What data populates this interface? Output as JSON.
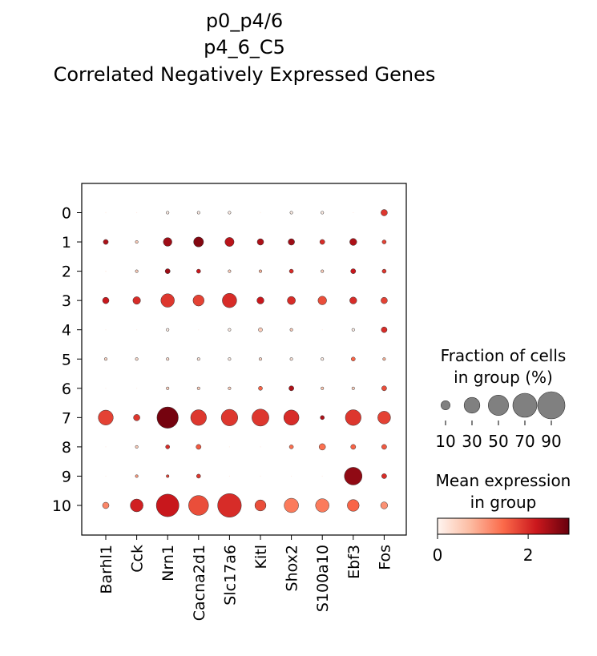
{
  "chart_data": {
    "type": "dotplot",
    "title_lines": [
      "p0_p4/6",
      "p4_6_C5",
      "Correlated Negatively Expressed Genes"
    ],
    "genes": [
      "Barhl1",
      "Cck",
      "Nrn1",
      "Cacna2d1",
      "Slc17a6",
      "Kitl",
      "Shox2",
      "S100a10",
      "Ebf3",
      "Fos"
    ],
    "groups": [
      "0",
      "1",
      "2",
      "3",
      "4",
      "5",
      "6",
      "7",
      "8",
      "9",
      "10"
    ],
    "fraction_pct": [
      [
        0,
        0,
        1,
        1,
        1,
        0,
        1,
        1,
        0,
        5
      ],
      [
        3,
        1,
        9,
        12,
        10,
        5,
        5,
        3,
        6,
        2
      ],
      [
        0,
        1,
        3,
        2,
        1,
        1,
        2,
        1,
        3,
        2
      ],
      [
        5,
        7,
        22,
        15,
        25,
        6,
        8,
        9,
        6,
        5
      ],
      [
        0,
        0,
        1,
        0,
        1,
        2,
        1,
        0,
        1,
        4
      ],
      [
        1,
        1,
        1,
        1,
        1,
        1,
        1,
        1,
        2,
        1
      ],
      [
        0,
        0,
        1,
        1,
        1,
        2,
        3,
        1,
        1,
        3
      ],
      [
        27,
        5,
        55,
        30,
        33,
        35,
        28,
        2,
        30,
        20
      ],
      [
        0,
        1,
        2,
        3,
        0,
        0,
        2,
        5,
        3,
        3
      ],
      [
        0,
        1,
        1,
        2,
        0,
        0,
        0,
        0,
        38,
        3
      ],
      [
        5,
        20,
        62,
        48,
        68,
        15,
        25,
        22,
        17,
        6
      ]
    ],
    "mean_expr": [
      [
        0.1,
        0.1,
        0.1,
        0.1,
        0.1,
        0.1,
        0.1,
        0.1,
        0.1,
        1.9
      ],
      [
        2.4,
        0.5,
        2.5,
        2.7,
        2.3,
        2.4,
        2.5,
        2.0,
        2.4,
        1.8
      ],
      [
        0.2,
        0.5,
        2.5,
        2.2,
        0.5,
        0.8,
        2.0,
        0.5,
        2.2,
        1.9
      ],
      [
        2.2,
        2.0,
        1.9,
        1.8,
        2.0,
        2.2,
        2.0,
        1.7,
        2.0,
        1.8
      ],
      [
        0.1,
        0.1,
        0.1,
        0.1,
        0.1,
        0.5,
        0.5,
        0.1,
        0.1,
        2.0
      ],
      [
        0.4,
        0.3,
        0.3,
        0.2,
        0.1,
        0.4,
        0.2,
        0.1,
        1.5,
        0.8
      ],
      [
        0.1,
        0.1,
        0.5,
        0.5,
        0.5,
        1.5,
        2.4,
        0.6,
        0.5,
        1.7
      ],
      [
        1.8,
        1.9,
        2.8,
        1.9,
        1.9,
        1.9,
        2.0,
        2.4,
        1.9,
        1.8
      ],
      [
        0.1,
        0.5,
        2.0,
        1.6,
        0.1,
        0.1,
        1.4,
        1.4,
        1.5,
        1.6
      ],
      [
        0.1,
        1.0,
        1.8,
        1.9,
        0.1,
        0.1,
        0.1,
        0.1,
        2.6,
        2.0
      ],
      [
        1.2,
        2.1,
        2.2,
        1.7,
        2.0,
        1.7,
        1.3,
        1.3,
        1.5,
        1.1
      ]
    ],
    "size_legend": {
      "title_lines": [
        "Fraction of cells",
        "in group (%)"
      ],
      "values": [
        10,
        30,
        50,
        70,
        90
      ],
      "labels": [
        "10",
        "30",
        "50",
        "70",
        "90"
      ]
    },
    "color_legend": {
      "title_lines": [
        "Mean expression",
        "in group"
      ],
      "range": [
        0,
        2.9
      ],
      "ticks": [
        0,
        2
      ],
      "tick_labels": [
        "0",
        "2"
      ],
      "colormap": "Reds"
    },
    "colors": {
      "reds_low": "#fff5f0",
      "reds_mid1": "#fcbba1",
      "reds_mid2": "#fb6a4a",
      "reds_mid3": "#cb181d",
      "reds_high": "#67000d",
      "legend_dot": "#808080"
    }
  }
}
